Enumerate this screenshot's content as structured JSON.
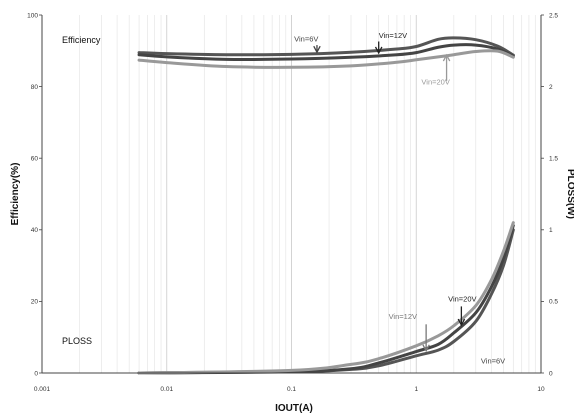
{
  "chart_data": {
    "type": "line",
    "xlabel": "IOUT(A)",
    "ylabel": "Efficiency(%)",
    "y2label": "PLOSS(W)",
    "xscale": "log",
    "xlim": [
      0.001,
      10
    ],
    "ylim": [
      0,
      100
    ],
    "y2lim": [
      0,
      2.5
    ],
    "grid": "vertical minor and major (log x), no horizontal",
    "x_ticks": [
      "0.001",
      "0.01",
      "0.1",
      "1",
      "10"
    ],
    "y_ticks": [
      "0",
      "20",
      "40",
      "60",
      "80",
      "100"
    ],
    "y2_ticks": [
      "0",
      "0.5",
      "1",
      "1.5",
      "2",
      "2.5"
    ],
    "inline_labels": {
      "efficiency": "Efficiency",
      "ploss": "PLOSS"
    },
    "series": [
      {
        "name": "Vin=6V",
        "group": "efficiency",
        "axis": "left",
        "color": "#555555",
        "points": [
          [
            0.006,
            89.5
          ],
          [
            0.01,
            89.2
          ],
          [
            0.03,
            88.9
          ],
          [
            0.1,
            89.0
          ],
          [
            0.3,
            89.6
          ],
          [
            0.7,
            90.5
          ],
          [
            1.0,
            91.2
          ],
          [
            1.5,
            93.2
          ],
          [
            2.0,
            93.6
          ],
          [
            3.0,
            93.1
          ],
          [
            4.5,
            91.3
          ],
          [
            6.0,
            88.8
          ]
        ]
      },
      {
        "name": "Vin=12V",
        "group": "efficiency",
        "axis": "left",
        "color": "#444444",
        "points": [
          [
            0.006,
            88.9
          ],
          [
            0.01,
            88.3
          ],
          [
            0.03,
            87.6
          ],
          [
            0.1,
            87.7
          ],
          [
            0.3,
            88.2
          ],
          [
            0.7,
            88.9
          ],
          [
            1.0,
            89.5
          ],
          [
            1.5,
            91.0
          ],
          [
            2.0,
            91.6
          ],
          [
            3.0,
            91.6
          ],
          [
            4.5,
            90.5
          ],
          [
            6.0,
            88.5
          ]
        ]
      },
      {
        "name": "Vin=20V",
        "group": "efficiency",
        "axis": "left",
        "color": "#999999",
        "points": [
          [
            0.006,
            87.4
          ],
          [
            0.01,
            86.7
          ],
          [
            0.03,
            85.6
          ],
          [
            0.1,
            85.4
          ],
          [
            0.3,
            85.8
          ],
          [
            0.7,
            86.8
          ],
          [
            1.0,
            87.5
          ],
          [
            1.5,
            88.3
          ],
          [
            2.0,
            88.9
          ],
          [
            3.0,
            89.8
          ],
          [
            4.5,
            89.9
          ],
          [
            6.0,
            88.2
          ]
        ]
      },
      {
        "name": "Vin=6V",
        "group": "ploss",
        "axis": "right",
        "color": "#555555",
        "points": [
          [
            0.006,
            0.0
          ],
          [
            0.1,
            0.008
          ],
          [
            0.3,
            0.025
          ],
          [
            0.5,
            0.05
          ],
          [
            1.0,
            0.12
          ],
          [
            1.5,
            0.16
          ],
          [
            2.0,
            0.22
          ],
          [
            3.0,
            0.36
          ],
          [
            4.0,
            0.55
          ],
          [
            5.0,
            0.75
          ],
          [
            6.0,
            1.0
          ]
        ]
      },
      {
        "name": "Vin=12V",
        "group": "ploss",
        "axis": "right",
        "color": "#444444",
        "points": [
          [
            0.006,
            0.0
          ],
          [
            0.1,
            0.01
          ],
          [
            0.3,
            0.03
          ],
          [
            0.5,
            0.07
          ],
          [
            1.0,
            0.15
          ],
          [
            1.5,
            0.2
          ],
          [
            2.0,
            0.28
          ],
          [
            3.0,
            0.42
          ],
          [
            4.0,
            0.6
          ],
          [
            5.0,
            0.8
          ],
          [
            6.0,
            1.03
          ]
        ]
      },
      {
        "name": "Vin=20V",
        "group": "ploss",
        "axis": "right",
        "color": "#999999",
        "points": [
          [
            0.006,
            0.0
          ],
          [
            0.1,
            0.018
          ],
          [
            0.3,
            0.06
          ],
          [
            0.5,
            0.1
          ],
          [
            1.0,
            0.19
          ],
          [
            1.5,
            0.26
          ],
          [
            2.0,
            0.33
          ],
          [
            3.0,
            0.47
          ],
          [
            4.0,
            0.65
          ],
          [
            5.0,
            0.85
          ],
          [
            6.0,
            1.05
          ]
        ]
      }
    ],
    "annotations": [
      {
        "text": "Vin=6V",
        "color": "#444444",
        "text_at": [
          0.105,
          92.6
        ],
        "arrow_from": [
          0.16,
          91.6
        ],
        "arrow_to": [
          0.16,
          89.6
        ]
      },
      {
        "text": "Vin=12V",
        "color": "#222222",
        "text_at": [
          0.5,
          93.6
        ],
        "arrow_from": [
          0.5,
          92.6
        ],
        "arrow_to": [
          0.5,
          89.4
        ]
      },
      {
        "text": "Vin=20V",
        "color": "#999999",
        "text_at": [
          1.1,
          80.6
        ],
        "arrow_from": [
          1.75,
          81.6
        ],
        "arrow_to": [
          1.75,
          88.8
        ]
      },
      {
        "text": "Vin=20V",
        "color": "#222222",
        "text_at": [
          1.8,
          20.0
        ],
        "arrow_from": [
          2.3,
          18.6
        ],
        "arrow_to": [
          2.3,
          13.4
        ]
      },
      {
        "text": "Vin=12V",
        "color": "#777777",
        "text_at": [
          0.6,
          15.1
        ],
        "arrow_from": [
          1.2,
          13.6
        ],
        "arrow_to": [
          1.2,
          6.2
        ]
      },
      {
        "text": "Vin=6V",
        "color": "#444444",
        "text_at": [
          3.3,
          2.6
        ],
        "arrow_from": null,
        "arrow_to": null
      }
    ]
  }
}
